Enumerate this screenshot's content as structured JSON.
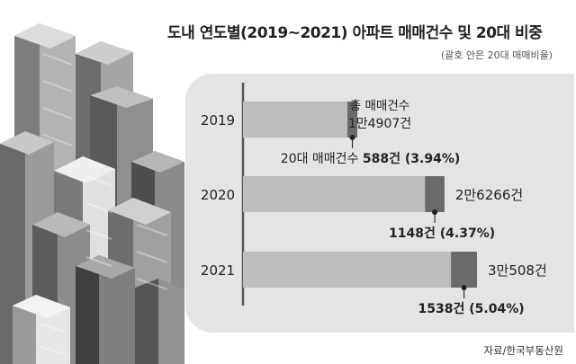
{
  "title": "도내 연도별(2019~2021) 아파트 매매건수 및 20대 비중",
  "subtitle": "(괄호 안은 20대 매매비율)",
  "source": "자료/한국부동산원",
  "colors": {
    "total_bar": "#bdbdbd",
    "twenties_bar": "#6a6a6a",
    "panel": "#e4e4e4",
    "axis": "#555555"
  },
  "chart_data": {
    "type": "bar",
    "orientation": "horizontal",
    "categories": [
      "2019",
      "2020",
      "2021"
    ],
    "series": [
      {
        "name": "총 매매건수",
        "values": [
          14907,
          26266,
          30508
        ]
      },
      {
        "name": "20대 매매건수",
        "values": [
          588,
          1148,
          1538
        ]
      }
    ],
    "shares_percent": [
      3.94,
      4.37,
      5.04
    ],
    "total_labels": [
      "1만4907건",
      "2만6266건",
      "3만508건"
    ],
    "twenties_labels": [
      {
        "prefix": "20대 매매건수",
        "count": "588건",
        "share": "(3.94%)"
      },
      {
        "prefix": "",
        "count": "1148건",
        "share": "(4.37%)"
      },
      {
        "prefix": "",
        "count": "1538건",
        "share": "(5.04%)"
      }
    ],
    "series_caption": "총 매매건수",
    "title": "도내 연도별(2019~2021) 아파트 매매건수 및 20대 비중",
    "xlabel": "",
    "ylabel": "",
    "grid": false
  }
}
